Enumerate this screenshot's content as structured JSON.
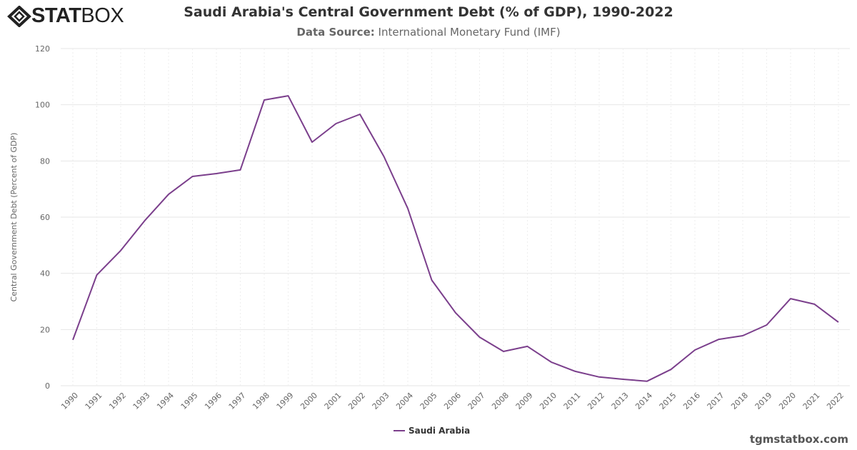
{
  "logo": {
    "text_bold": "STAT",
    "text_light": "BOX"
  },
  "header": {
    "title": "Saudi Arabia's Central Government Debt (% of GDP), 1990-2022",
    "source_label": "Data Source:",
    "source_value": "International Monetary Fund (IMF)"
  },
  "footer": {
    "site": "tgmstatbox.com"
  },
  "chart_data": {
    "type": "line",
    "title": "Saudi Arabia's Central Government Debt (% of GDP), 1990-2022",
    "ylabel": "Central Government Debt (Percent of GDP)",
    "xlabel": "",
    "ylim": [
      0,
      120
    ],
    "yticks": [
      0,
      20,
      40,
      60,
      80,
      100,
      120
    ],
    "grid": true,
    "legend": "bottom-center",
    "x": [
      1990,
      1991,
      1992,
      1993,
      1994,
      1995,
      1996,
      1997,
      1998,
      1999,
      2000,
      2001,
      2002,
      2003,
      2004,
      2005,
      2006,
      2007,
      2008,
      2009,
      2010,
      2011,
      2012,
      2013,
      2014,
      2015,
      2016,
      2017,
      2018,
      2019,
      2020,
      2021,
      2022
    ],
    "series": [
      {
        "name": "Saudi Arabia",
        "color": "#7b3f8c",
        "values": [
          16.3,
          39.4,
          48.1,
          58.7,
          68.1,
          74.5,
          75.5,
          76.8,
          101.7,
          103.2,
          86.7,
          93.3,
          96.6,
          81.6,
          63.1,
          37.6,
          25.9,
          17.3,
          12.2,
          14.0,
          8.4,
          5.1,
          3.1,
          2.3,
          1.6,
          5.8,
          12.7,
          16.5,
          17.8,
          21.6,
          31.0,
          29.0,
          22.6
        ]
      }
    ]
  }
}
